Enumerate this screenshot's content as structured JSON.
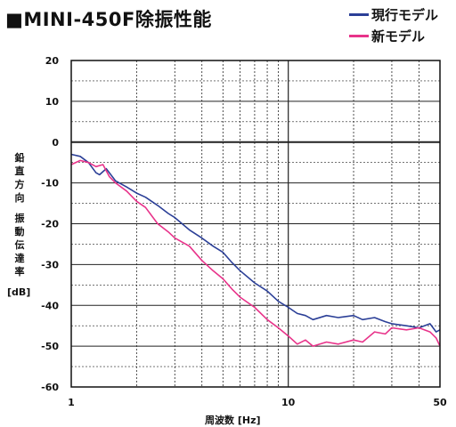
{
  "title": "■MINI-450F除振性能",
  "legend": [
    {
      "label": "現行モデル",
      "color": "#2b3f97"
    },
    {
      "label": "新モデル",
      "color": "#e8338a"
    }
  ],
  "y_axis_label_1": "鉛直方向",
  "y_axis_label_2": "振動伝達率",
  "y_axis_unit": "[dB]",
  "x_axis_label": "周波数 [Hz]",
  "chart_data": {
    "type": "line",
    "xscale": "log",
    "xlim": [
      1,
      50
    ],
    "ylim": [
      -60,
      20
    ],
    "x_tick_labels": [
      "1",
      "10",
      "50"
    ],
    "x_ticks": [
      1,
      10,
      50
    ],
    "y_ticks": [
      20,
      10,
      0,
      -10,
      -20,
      -30,
      -40,
      -50,
      -60
    ],
    "grid": true,
    "legend_position": "top-right",
    "series": [
      {
        "name": "現行モデル",
        "color": "#2b3f97",
        "x": [
          1.0,
          1.1,
          1.2,
          1.3,
          1.35,
          1.45,
          1.6,
          1.8,
          2.0,
          2.2,
          2.5,
          2.8,
          3.0,
          3.5,
          4.0,
          4.5,
          5.0,
          5.5,
          6.0,
          7.0,
          8.0,
          9.0,
          10.0,
          11.0,
          12.0,
          13.0,
          15.0,
          17.0,
          20.0,
          22.0,
          25.0,
          28.0,
          30.0,
          35.0,
          40.0,
          45.0,
          48.0,
          50.0
        ],
        "y": [
          -3.0,
          -3.5,
          -5.0,
          -7.5,
          -8.0,
          -6.5,
          -9.5,
          -11.0,
          -12.5,
          -13.5,
          -15.5,
          -17.5,
          -18.5,
          -21.5,
          -23.5,
          -25.5,
          -27.0,
          -29.5,
          -31.5,
          -34.5,
          -36.5,
          -39.0,
          -40.5,
          -42.0,
          -42.5,
          -43.5,
          -42.5,
          -43.0,
          -42.5,
          -43.5,
          -43.0,
          -44.0,
          -44.5,
          -45.0,
          -45.5,
          -44.5,
          -46.5,
          -46.0
        ]
      },
      {
        "name": "新モデル",
        "color": "#e8338a",
        "x": [
          1.0,
          1.1,
          1.2,
          1.3,
          1.4,
          1.5,
          1.6,
          1.8,
          2.0,
          2.2,
          2.5,
          2.8,
          3.0,
          3.5,
          4.0,
          4.5,
          5.0,
          5.5,
          6.0,
          7.0,
          8.0,
          9.0,
          10.0,
          11.0,
          12.0,
          13.0,
          15.0,
          17.0,
          20.0,
          22.0,
          25.0,
          28.0,
          30.0,
          35.0,
          40.0,
          45.0,
          48.0,
          50.0
        ],
        "y": [
          -5.5,
          -4.5,
          -5.0,
          -6.0,
          -5.5,
          -8.5,
          -10.0,
          -12.0,
          -14.5,
          -16.0,
          -20.0,
          -22.0,
          -23.5,
          -25.5,
          -29.0,
          -31.5,
          -33.5,
          -36.0,
          -38.0,
          -40.5,
          -43.5,
          -45.5,
          -47.5,
          -49.5,
          -48.5,
          -50.0,
          -49.0,
          -49.5,
          -48.5,
          -49.0,
          -46.5,
          -47.0,
          -45.5,
          -46.0,
          -45.5,
          -46.5,
          -48.0,
          -50.0
        ]
      }
    ]
  }
}
